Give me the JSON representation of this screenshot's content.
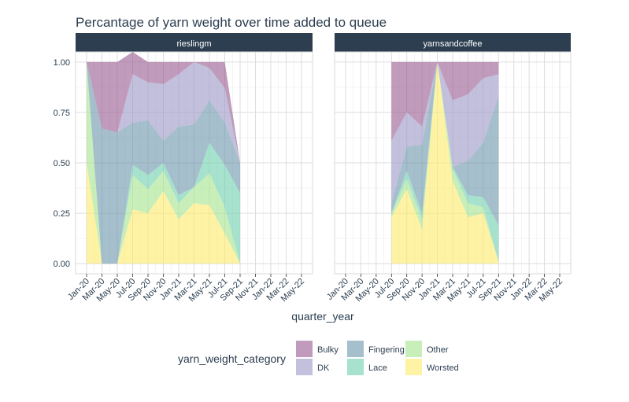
{
  "chart_data": {
    "type": "area",
    "title": "Percantage of yarn weight over time added to queue",
    "xlabel": "quarter_year",
    "ylabel": "",
    "ylim": [
      -0.05,
      1.05
    ],
    "yticks": [
      0,
      0.25,
      0.5,
      0.75,
      1
    ],
    "ytick_labels": [
      "0.00",
      "0.25",
      "0.50",
      "0.75",
      "1.00"
    ],
    "categories": [
      "Jan-20",
      "Mar-20",
      "May-20",
      "Jul-20",
      "Sep-20",
      "Nov-20",
      "Jan-21",
      "Mar-21",
      "May-21",
      "Jul-21",
      "Sep-21",
      "Nov-21",
      "Jan-22",
      "Mar-22",
      "May-22"
    ],
    "grid": true,
    "legend": {
      "title": "yarn_weight_category",
      "position": "bottom",
      "items": [
        {
          "name": "Bulky",
          "color": "#9b5d92"
        },
        {
          "name": "DK",
          "color": "#9c99c8"
        },
        {
          "name": "Fingering",
          "color": "#6d98ad"
        },
        {
          "name": "Lace",
          "color": "#6fd0ae"
        },
        {
          "name": "Other",
          "color": "#a6e38f"
        },
        {
          "name": "Worsted",
          "color": "#fdeb6e"
        }
      ]
    },
    "colors": {
      "strip_bg": "#2c3e50",
      "panel_bg": "#ffffff",
      "text": "#2c3e50"
    },
    "panels": [
      {
        "name": "rieslingm",
        "x_start": 0,
        "series": [
          {
            "name": "Worsted",
            "values": [
              0.5,
              0.0,
              0.0,
              0.27,
              0.25,
              0.36,
              0.22,
              0.3,
              0.29,
              0.15,
              0.0
            ]
          },
          {
            "name": "Other",
            "values": [
              0.5,
              0.0,
              0.0,
              0.17,
              0.12,
              0.1,
              0.08,
              0.08,
              0.16,
              0.13,
              0.0
            ]
          },
          {
            "name": "Lace",
            "values": [
              0.0,
              0.0,
              0.0,
              0.05,
              0.07,
              0.04,
              0.04,
              0.0,
              0.15,
              0.21,
              0.35
            ]
          },
          {
            "name": "Fingering",
            "values": [
              0.0,
              0.67,
              0.65,
              0.21,
              0.27,
              0.11,
              0.34,
              0.31,
              0.21,
              0.21,
              0.15
            ]
          },
          {
            "name": "DK",
            "values": [
              0.0,
              0.0,
              0.0,
              0.24,
              0.19,
              0.28,
              0.26,
              0.31,
              0.16,
              0.17,
              0.0
            ]
          },
          {
            "name": "Bulky",
            "values": [
              0.0,
              0.33,
              0.35,
              0.11,
              0.1,
              0.11,
              0.06,
              0.0,
              0.03,
              0.13,
              0.0
            ]
          }
        ]
      },
      {
        "name": "yarnsandcoffee",
        "x_start": 3,
        "series": [
          {
            "name": "Worsted",
            "values": [
              0.23,
              0.37,
              0.17,
              1.0,
              0.41,
              0.23,
              0.25,
              0.01
            ]
          },
          {
            "name": "Other",
            "values": [
              0.02,
              0.05,
              0.05,
              0.0,
              0.06,
              0.07,
              0.03,
              0.0
            ]
          },
          {
            "name": "Lace",
            "values": [
              0.0,
              0.04,
              0.03,
              0.0,
              0.01,
              0.04,
              0.05,
              0.18
            ]
          },
          {
            "name": "Fingering",
            "values": [
              0.05,
              0.12,
              0.34,
              0.0,
              0.0,
              0.17,
              0.27,
              0.64
            ]
          },
          {
            "name": "DK",
            "values": [
              0.31,
              0.17,
              0.09,
              0.0,
              0.33,
              0.33,
              0.32,
              0.11
            ]
          },
          {
            "name": "Bulky",
            "values": [
              0.39,
              0.25,
              0.32,
              0.0,
              0.19,
              0.16,
              0.08,
              0.06
            ]
          }
        ]
      }
    ]
  }
}
